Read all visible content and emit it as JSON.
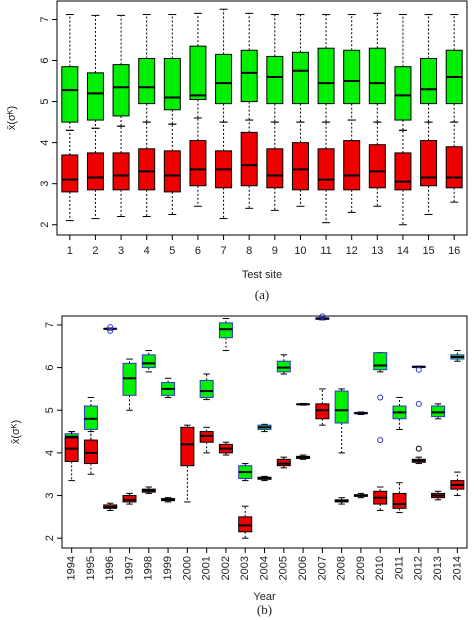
{
  "chart_data": [
    {
      "type": "box",
      "xlabel": "Test site",
      "ylabel": "x̄(σᴷ)",
      "caption": "(a)",
      "categories": [
        "1",
        "2",
        "3",
        "4",
        "5",
        "6",
        "7",
        "8",
        "9",
        "10",
        "11",
        "12",
        "13",
        "14",
        "15",
        "16"
      ],
      "ylim": [
        1.75,
        7.45
      ],
      "yticks": [
        2,
        3,
        4,
        5,
        6,
        7
      ],
      "series": [
        {
          "color": "#00ee00",
          "stroke": "#000000",
          "boxes": [
            {
              "low": 4.3,
              "q1": 4.5,
              "median": 5.28,
              "q3": 5.85,
              "high": 7.12
            },
            {
              "low": 4.35,
              "q1": 4.55,
              "median": 5.2,
              "q3": 5.7,
              "high": 7.1
            },
            {
              "low": 4.4,
              "q1": 4.65,
              "median": 5.35,
              "q3": 5.9,
              "high": 7.1
            },
            {
              "low": 4.5,
              "q1": 4.95,
              "median": 5.35,
              "q3": 6.05,
              "high": 7.12
            },
            {
              "low": 4.45,
              "q1": 4.8,
              "median": 5.1,
              "q3": 6.05,
              "high": 7.12
            },
            {
              "low": 4.6,
              "q1": 5.05,
              "median": 5.15,
              "q3": 6.35,
              "high": 7.15
            },
            {
              "low": 4.5,
              "q1": 4.95,
              "median": 5.45,
              "q3": 6.15,
              "high": 7.25
            },
            {
              "low": 4.55,
              "q1": 5.0,
              "median": 5.7,
              "q3": 6.25,
              "high": 7.15
            },
            {
              "low": 4.5,
              "q1": 4.95,
              "median": 5.6,
              "q3": 6.1,
              "high": 7.12
            },
            {
              "low": 4.5,
              "q1": 4.95,
              "median": 5.75,
              "q3": 6.2,
              "high": 7.12
            },
            {
              "low": 4.5,
              "q1": 4.95,
              "median": 5.45,
              "q3": 6.3,
              "high": 7.12
            },
            {
              "low": 4.55,
              "q1": 4.95,
              "median": 5.5,
              "q3": 6.25,
              "high": 7.12
            },
            {
              "low": 4.5,
              "q1": 4.95,
              "median": 5.45,
              "q3": 6.3,
              "high": 7.15
            },
            {
              "low": 4.3,
              "q1": 4.55,
              "median": 5.15,
              "q3": 5.85,
              "high": 7.12
            },
            {
              "low": 4.5,
              "q1": 4.95,
              "median": 5.3,
              "q3": 6.05,
              "high": 7.12
            },
            {
              "low": 4.5,
              "q1": 4.95,
              "median": 5.6,
              "q3": 6.25,
              "high": 7.12
            }
          ]
        },
        {
          "color": "#ee0000",
          "stroke": "#000000",
          "boxes": [
            {
              "low": 2.1,
              "q1": 2.8,
              "median": 3.1,
              "q3": 3.7,
              "high": 4.3
            },
            {
              "low": 2.15,
              "q1": 2.85,
              "median": 3.15,
              "q3": 3.75,
              "high": 4.35
            },
            {
              "low": 2.2,
              "q1": 2.85,
              "median": 3.2,
              "q3": 3.75,
              "high": 4.4
            },
            {
              "low": 2.2,
              "q1": 2.85,
              "median": 3.3,
              "q3": 3.85,
              "high": 4.5
            },
            {
              "low": 2.25,
              "q1": 2.8,
              "median": 3.2,
              "q3": 3.8,
              "high": 4.45
            },
            {
              "low": 2.45,
              "q1": 2.95,
              "median": 3.35,
              "q3": 4.05,
              "high": 4.6
            },
            {
              "low": 2.15,
              "q1": 2.9,
              "median": 3.35,
              "q3": 3.8,
              "high": 4.5
            },
            {
              "low": 2.4,
              "q1": 2.95,
              "median": 3.45,
              "q3": 4.25,
              "high": 4.55
            },
            {
              "low": 2.35,
              "q1": 2.9,
              "median": 3.2,
              "q3": 3.85,
              "high": 4.5
            },
            {
              "low": 2.45,
              "q1": 2.85,
              "median": 3.35,
              "q3": 4.0,
              "high": 4.5
            },
            {
              "low": 2.05,
              "q1": 2.85,
              "median": 3.1,
              "q3": 3.85,
              "high": 4.5
            },
            {
              "low": 2.3,
              "q1": 2.85,
              "median": 3.2,
              "q3": 4.05,
              "high": 4.55
            },
            {
              "low": 2.45,
              "q1": 2.9,
              "median": 3.3,
              "q3": 3.95,
              "high": 4.5
            },
            {
              "low": 2.0,
              "q1": 2.85,
              "median": 3.05,
              "q3": 3.75,
              "high": 4.3
            },
            {
              "low": 2.25,
              "q1": 2.95,
              "median": 3.15,
              "q3": 4.05,
              "high": 4.5
            },
            {
              "low": 2.55,
              "q1": 2.9,
              "median": 3.15,
              "q3": 3.9,
              "high": 4.5
            }
          ]
        }
      ]
    },
    {
      "type": "box",
      "xlabel": "Year",
      "ylabel": "x̄(σᴷ)",
      "caption": "(b)",
      "categories": [
        "1994",
        "1995",
        "1996",
        "1997",
        "1998",
        "1999",
        "2000",
        "2001",
        "2002",
        "2003",
        "2004",
        "2005",
        "2006",
        "2007",
        "2008",
        "2009",
        "2010",
        "2011",
        "2012",
        "2013",
        "2014"
      ],
      "ylim": [
        1.77,
        7.21
      ],
      "yticks": [
        2,
        3,
        4,
        5,
        6,
        7
      ],
      "series": [
        {
          "color": "#00ee00",
          "stroke": "#3333cc",
          "boxes": [
            {
              "low": 4.3,
              "q1": 4.32,
              "median": 4.38,
              "q3": 4.45,
              "high": 4.5
            },
            {
              "low": 4.3,
              "q1": 4.55,
              "median": 4.8,
              "q3": 5.1,
              "high": 5.3
            },
            {
              "low": 6.88,
              "q1": 6.9,
              "median": 6.91,
              "q3": 6.92,
              "high": 6.93,
              "outliers": [
                6.95,
                6.86
              ]
            },
            {
              "low": 5.0,
              "q1": 5.35,
              "median": 5.75,
              "q3": 6.1,
              "high": 6.2
            },
            {
              "low": 5.9,
              "q1": 6.0,
              "median": 6.1,
              "q3": 6.3,
              "high": 6.4
            },
            {
              "low": 5.3,
              "q1": 5.35,
              "median": 5.5,
              "q3": 5.65,
              "high": 5.75
            },
            null,
            {
              "low": 5.25,
              "q1": 5.3,
              "median": 5.45,
              "q3": 5.7,
              "high": 5.85
            },
            {
              "low": 6.4,
              "q1": 6.7,
              "median": 6.9,
              "q3": 7.05,
              "high": 7.15
            },
            {
              "low": 3.35,
              "q1": 3.4,
              "median": 3.55,
              "q3": 3.7,
              "high": 3.75
            },
            {
              "low": 4.5,
              "q1": 4.55,
              "median": 4.6,
              "q3": 4.65,
              "high": 4.67
            },
            {
              "low": 5.85,
              "q1": 5.9,
              "median": 6.0,
              "q3": 6.15,
              "high": 6.3
            },
            {
              "low": 5.12,
              "q1": 5.13,
              "median": 5.14,
              "q3": 5.15,
              "high": 5.16
            },
            {
              "low": 7.12,
              "q1": 7.13,
              "median": 7.15,
              "q3": 7.17,
              "high": 7.18,
              "outliers": [
                7.2
              ]
            },
            {
              "low": 4.0,
              "q1": 4.7,
              "median": 5.0,
              "q3": 5.45,
              "high": 5.5
            },
            {
              "low": 4.9,
              "q1": 4.92,
              "median": 4.93,
              "q3": 4.95,
              "high": 4.96
            },
            {
              "low": 5.9,
              "q1": 5.95,
              "median": 6.05,
              "q3": 6.35,
              "high": 6.35,
              "outliers": [
                5.3,
                4.3
              ]
            },
            {
              "low": 4.55,
              "q1": 4.8,
              "median": 4.95,
              "q3": 5.1,
              "high": 5.3
            },
            {
              "low": 6.0,
              "q1": 6.0,
              "median": 6.02,
              "q3": 6.03,
              "high": 6.03,
              "outliers": [
                5.95,
                5.15
              ]
            },
            {
              "low": 4.8,
              "q1": 4.85,
              "median": 4.95,
              "q3": 5.1,
              "high": 5.15
            },
            {
              "low": 6.15,
              "q1": 6.2,
              "median": 6.25,
              "q3": 6.3,
              "high": 6.4
            }
          ]
        },
        {
          "color": "#ee0000",
          "stroke": "#000000",
          "boxes": [
            {
              "low": 3.35,
              "q1": 3.8,
              "median": 4.1,
              "q3": 4.35,
              "high": 4.5
            },
            {
              "low": 3.5,
              "q1": 3.75,
              "median": 4.0,
              "q3": 4.3,
              "high": 4.5
            },
            {
              "low": 2.65,
              "q1": 2.7,
              "median": 2.73,
              "q3": 2.78,
              "high": 2.82
            },
            {
              "low": 2.8,
              "q1": 2.85,
              "median": 2.9,
              "q3": 3.0,
              "high": 3.05
            },
            {
              "low": 3.05,
              "q1": 3.08,
              "median": 3.12,
              "q3": 3.15,
              "high": 3.2
            },
            {
              "low": 2.85,
              "q1": 2.88,
              "median": 2.9,
              "q3": 2.93,
              "high": 2.95
            },
            {
              "low": 2.85,
              "q1": 3.7,
              "median": 4.2,
              "q3": 4.6,
              "high": 4.65
            },
            {
              "low": 4.0,
              "q1": 4.25,
              "median": 4.4,
              "q3": 4.5,
              "high": 4.6
            },
            {
              "low": 3.95,
              "q1": 4.0,
              "median": 4.1,
              "q3": 4.2,
              "high": 4.25
            },
            {
              "low": 2.0,
              "q1": 2.15,
              "median": 2.3,
              "q3": 2.5,
              "high": 2.75
            },
            {
              "low": 3.35,
              "q1": 3.38,
              "median": 3.4,
              "q3": 3.43,
              "high": 3.45
            },
            {
              "low": 3.65,
              "q1": 3.7,
              "median": 3.75,
              "q3": 3.85,
              "high": 3.9
            },
            {
              "low": 3.85,
              "q1": 3.87,
              "median": 3.9,
              "q3": 3.92,
              "high": 3.95
            },
            {
              "low": 4.65,
              "q1": 4.8,
              "median": 5.0,
              "q3": 5.15,
              "high": 5.5
            },
            {
              "low": 2.8,
              "q1": 2.85,
              "median": 2.88,
              "q3": 2.9,
              "high": 2.95
            },
            {
              "low": 2.95,
              "q1": 2.98,
              "median": 3.0,
              "q3": 3.02,
              "high": 3.05
            },
            {
              "low": 2.65,
              "q1": 2.8,
              "median": 2.95,
              "q3": 3.1,
              "high": 3.2
            },
            {
              "low": 2.6,
              "q1": 2.7,
              "median": 2.8,
              "q3": 3.05,
              "high": 3.3
            },
            {
              "low": 3.75,
              "q1": 3.78,
              "median": 3.82,
              "q3": 3.85,
              "high": 3.9,
              "outliers": [
                4.1
              ]
            },
            {
              "low": 2.9,
              "q1": 2.95,
              "median": 3.0,
              "q3": 3.05,
              "high": 3.1
            },
            {
              "low": 3.0,
              "q1": 3.15,
              "median": 3.25,
              "q3": 3.35,
              "high": 3.55
            }
          ]
        }
      ]
    }
  ]
}
